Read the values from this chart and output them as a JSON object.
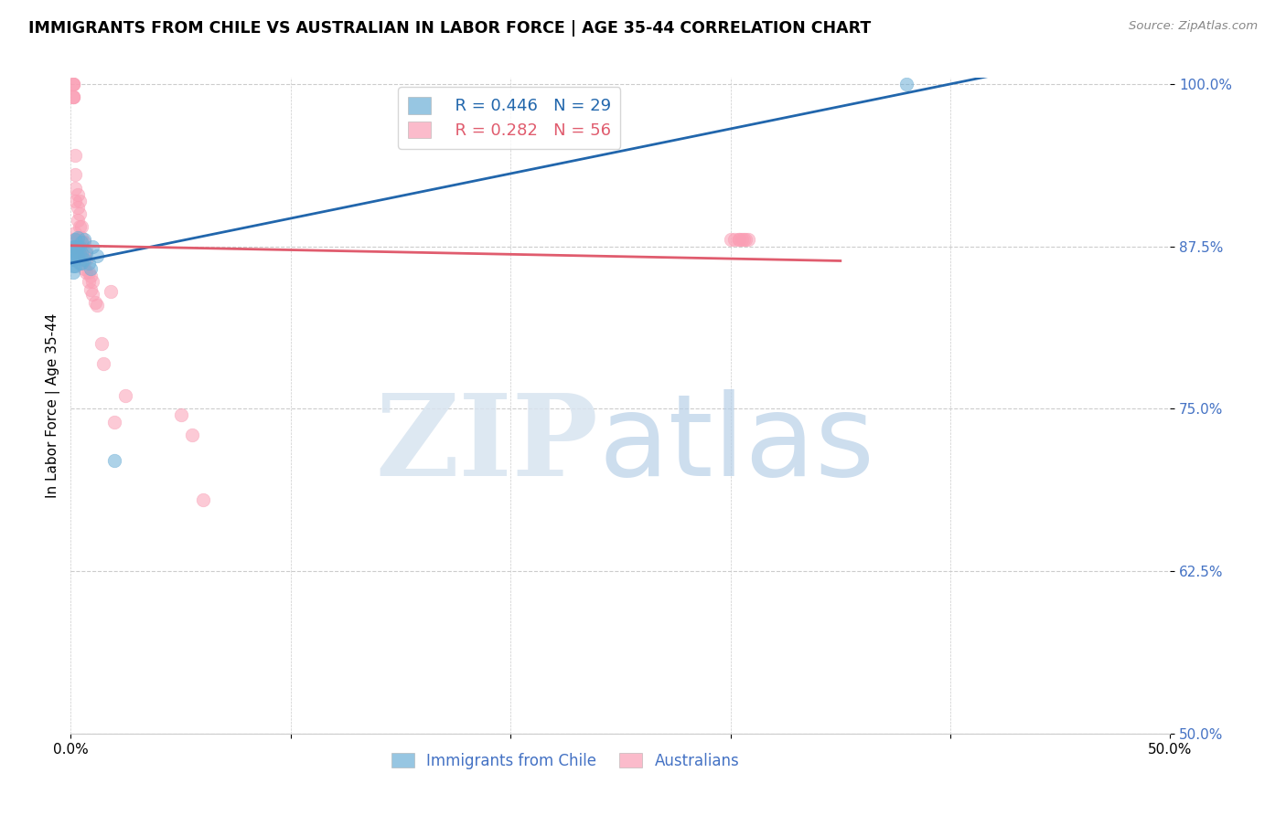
{
  "title": "IMMIGRANTS FROM CHILE VS AUSTRALIAN IN LABOR FORCE | AGE 35-44 CORRELATION CHART",
  "source": "Source: ZipAtlas.com",
  "ylabel": "In Labor Force | Age 35-44",
  "xlim": [
    0.0,
    0.5
  ],
  "ylim": [
    0.5,
    1.005
  ],
  "xticks": [
    0.0,
    0.1,
    0.2,
    0.3,
    0.4,
    0.5
  ],
  "xtick_labels": [
    "0.0%",
    "",
    "",
    "",
    "",
    "50.0%"
  ],
  "yticks": [
    0.5,
    0.625,
    0.75,
    0.875,
    1.0
  ],
  "ytick_labels": [
    "50.0%",
    "62.5%",
    "75.0%",
    "87.5%",
    "100.0%"
  ],
  "blue_color": "#6baed6",
  "pink_color": "#fa9fb5",
  "blue_line_color": "#2166ac",
  "pink_line_color": "#e05c6e",
  "legend_R_blue": "R = 0.446",
  "legend_N_blue": "N = 29",
  "legend_R_pink": "R = 0.282",
  "legend_N_pink": "N = 56",
  "blue_scatter_x": [
    0.001,
    0.001,
    0.001,
    0.001,
    0.001,
    0.001,
    0.002,
    0.002,
    0.002,
    0.002,
    0.002,
    0.003,
    0.003,
    0.003,
    0.004,
    0.004,
    0.004,
    0.005,
    0.005,
    0.005,
    0.006,
    0.006,
    0.007,
    0.008,
    0.009,
    0.01,
    0.012,
    0.02,
    0.38
  ],
  "blue_scatter_y": [
    0.875,
    0.872,
    0.868,
    0.865,
    0.86,
    0.855,
    0.88,
    0.875,
    0.87,
    0.865,
    0.86,
    0.882,
    0.875,
    0.868,
    0.875,
    0.87,
    0.862,
    0.878,
    0.87,
    0.862,
    0.88,
    0.865,
    0.87,
    0.862,
    0.858,
    0.875,
    0.868,
    0.71,
    1.0
  ],
  "pink_scatter_x": [
    0.001,
    0.001,
    0.001,
    0.001,
    0.001,
    0.001,
    0.001,
    0.001,
    0.002,
    0.002,
    0.002,
    0.002,
    0.002,
    0.003,
    0.003,
    0.003,
    0.003,
    0.004,
    0.004,
    0.004,
    0.004,
    0.004,
    0.005,
    0.005,
    0.005,
    0.005,
    0.006,
    0.006,
    0.006,
    0.007,
    0.007,
    0.007,
    0.008,
    0.008,
    0.009,
    0.009,
    0.01,
    0.01,
    0.011,
    0.012,
    0.014,
    0.015,
    0.018,
    0.02,
    0.025,
    0.05,
    0.055,
    0.06,
    0.3,
    0.302,
    0.304,
    0.304,
    0.305,
    0.306,
    0.307,
    0.308
  ],
  "pink_scatter_y": [
    1.0,
    1.0,
    1.0,
    0.99,
    0.99,
    0.99,
    0.88,
    0.875,
    0.945,
    0.93,
    0.92,
    0.91,
    0.885,
    0.915,
    0.905,
    0.895,
    0.88,
    0.91,
    0.9,
    0.89,
    0.88,
    0.87,
    0.89,
    0.882,
    0.875,
    0.868,
    0.878,
    0.868,
    0.858,
    0.872,
    0.865,
    0.855,
    0.855,
    0.848,
    0.852,
    0.842,
    0.848,
    0.838,
    0.832,
    0.83,
    0.8,
    0.785,
    0.84,
    0.74,
    0.76,
    0.745,
    0.73,
    0.68,
    0.88,
    0.88,
    0.88,
    0.88,
    0.88,
    0.88,
    0.88,
    0.88
  ]
}
